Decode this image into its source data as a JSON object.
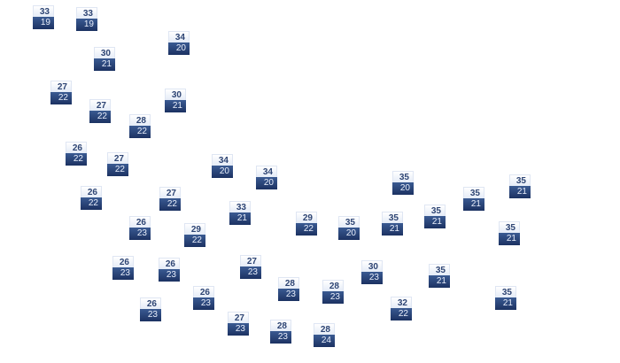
{
  "colors": {
    "high_bg": "#ffffff",
    "high_text": "#2d4473",
    "low_bg": "#2a4478",
    "low_text": "#e8eefb"
  },
  "markers": [
    {
      "high": "33",
      "low": "19"
    },
    {
      "high": "33",
      "low": "19"
    },
    {
      "high": "34",
      "low": "20"
    },
    {
      "high": "30",
      "low": "21"
    },
    {
      "high": "27",
      "low": "22"
    },
    {
      "high": "27",
      "low": "22"
    },
    {
      "high": "30",
      "low": "21"
    },
    {
      "high": "28",
      "low": "22"
    },
    {
      "high": "26",
      "low": "22"
    },
    {
      "high": "27",
      "low": "22"
    },
    {
      "high": "34",
      "low": "20"
    },
    {
      "high": "34",
      "low": "20"
    },
    {
      "high": "26",
      "low": "22"
    },
    {
      "high": "27",
      "low": "22"
    },
    {
      "high": "33",
      "low": "21"
    },
    {
      "high": "26",
      "low": "23"
    },
    {
      "high": "29",
      "low": "22"
    },
    {
      "high": "29",
      "low": "22"
    },
    {
      "high": "26",
      "low": "23"
    },
    {
      "high": "26",
      "low": "23"
    },
    {
      "high": "27",
      "low": "23"
    },
    {
      "high": "28",
      "low": "23"
    },
    {
      "high": "26",
      "low": "23"
    },
    {
      "high": "26",
      "low": "23"
    },
    {
      "high": "27",
      "low": "23"
    },
    {
      "high": "28",
      "low": "23"
    },
    {
      "high": "35",
      "low": "20"
    },
    {
      "high": "35",
      "low": "21"
    },
    {
      "high": "35",
      "low": "21"
    },
    {
      "high": "35",
      "low": "21"
    },
    {
      "high": "35",
      "low": "20"
    },
    {
      "high": "35",
      "low": "21"
    },
    {
      "high": "35",
      "low": "21"
    },
    {
      "high": "30",
      "low": "23"
    },
    {
      "high": "28",
      "low": "23"
    },
    {
      "high": "35",
      "low": "21"
    },
    {
      "high": "32",
      "low": "22"
    },
    {
      "high": "35",
      "low": "21"
    },
    {
      "high": "28",
      "low": "24"
    }
  ]
}
